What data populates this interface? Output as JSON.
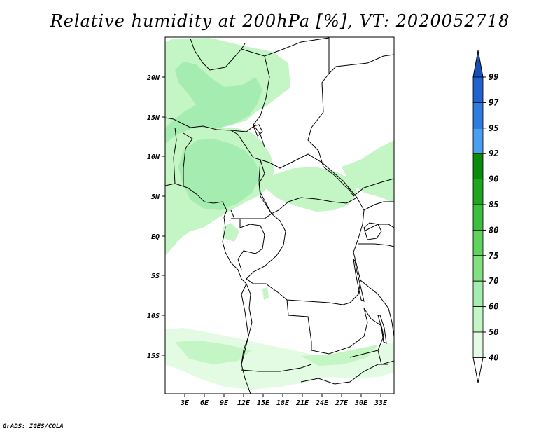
{
  "title": "Relative humidity at 200hPa [%], VT: 2020052718",
  "footer": "GrADS: IGES/COLA",
  "map": {
    "lat_labels": [
      "20N",
      "15N",
      "10N",
      "5N",
      "EQ",
      "5S",
      "10S",
      "15S"
    ],
    "lon_labels": [
      "3E",
      "6E",
      "9E",
      "12E",
      "15E",
      "18E",
      "21E",
      "24E",
      "27E",
      "30E",
      "33E"
    ]
  },
  "colorbar": {
    "levels": [
      "99",
      "97",
      "95",
      "92",
      "90",
      "85",
      "80",
      "75",
      "70",
      "60",
      "50",
      "40"
    ],
    "colors": [
      "#1f62d0",
      "#2d7de0",
      "#4aa0f0",
      "#0a8c0a",
      "#1ea61e",
      "#3cbf3c",
      "#5ed35e",
      "#82e082",
      "#a4ecaf",
      "#c4f5c4",
      "#e2fbe2",
      "#ffffff"
    ],
    "top_color": "#1850b8"
  }
}
